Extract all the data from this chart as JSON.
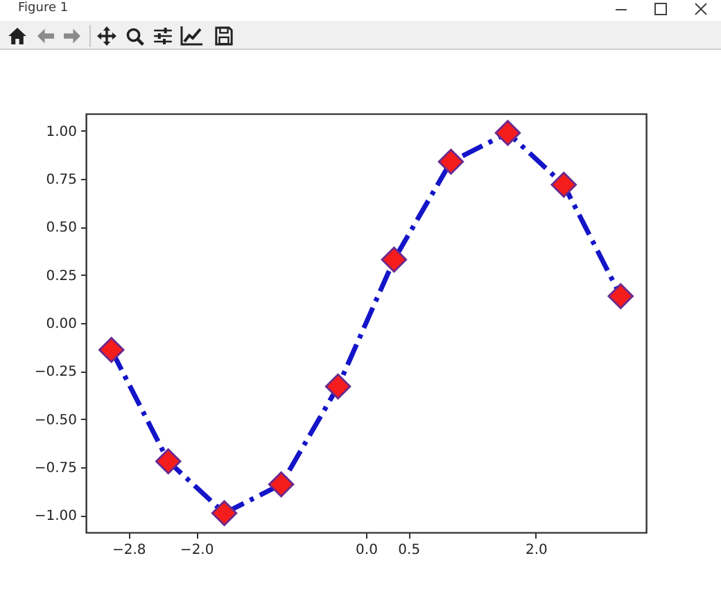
{
  "chart_data": {
    "type": "line",
    "annotations": [
      "Figure 1"
    ],
    "x": [
      -3,
      -2.33,
      -1.67,
      -1,
      -0.33,
      0.33,
      1,
      1.67,
      2.33,
      3
    ],
    "series": [
      {
        "type": "line",
        "color": "#1414c8",
        "line_style": "dashdot",
        "values": [
          -0.14,
          -0.72,
          -0.99,
          -0.84,
          -0.33,
          0.33,
          0.84,
          0.99,
          0.72,
          0.14
        ]
      },
      {
        "type": "scatter",
        "color": "#f51c1c",
        "marker": "diamond",
        "values": [
          -0.14,
          -0.72,
          -0.99,
          -0.84,
          -0.33,
          0.33,
          0.84,
          0.99,
          0.72,
          0.14
        ]
      }
    ],
    "xlim": [
      -3.3,
      3.3
    ],
    "ylim": [
      -1.09,
      1.09
    ],
    "xticks": [
      -2.8,
      {
        "value": -2,
        "label": "−2.0"
      },
      {
        "value": 0,
        "label": "0.0"
      },
      0.5,
      {
        "value": 2,
        "label": "2.0"
      }
    ],
    "yticks": [
      {
        "value": -1,
        "label": "−1.00"
      },
      -0.75,
      {
        "value": -0.5,
        "label": "−0.50"
      },
      -0.25,
      {
        "value": 0,
        "label": "0.00"
      },
      0.25,
      {
        "value": 0.5,
        "label": "0.50"
      },
      0.75,
      {
        "value": 1,
        "label": "1.00"
      }
    ],
    "grid": false
  }
}
